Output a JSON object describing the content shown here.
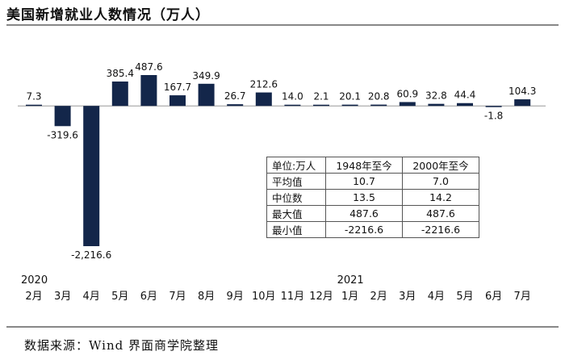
{
  "title": "美国新增就业人数情况（万人）",
  "source": "数据来源：Wind 界面商学院整理",
  "chart_data": {
    "type": "bar",
    "categories": [
      "2月",
      "3月",
      "4月",
      "5月",
      "6月",
      "7月",
      "8月",
      "9月",
      "10月",
      "11月",
      "12月",
      "1月",
      "2月",
      "3月",
      "4月",
      "5月",
      "6月",
      "7月"
    ],
    "values": [
      7.3,
      -319.6,
      -2216.6,
      385.4,
      487.6,
      167.7,
      349.9,
      26.7,
      212.6,
      14.0,
      2.1,
      20.1,
      20.8,
      60.9,
      32.8,
      44.4,
      -1.8,
      104.3
    ],
    "value_labels": [
      "7.3",
      "-319.6",
      "-2,216.6",
      "385.4",
      "487.6",
      "167.7",
      "349.9",
      "26.7",
      "212.6",
      "14.0",
      "2.1",
      "20.1",
      "20.8",
      "60.9",
      "32.8",
      "44.4",
      "-1.8",
      "104.3"
    ],
    "year_labels": [
      {
        "index": 0,
        "text": "2020"
      },
      {
        "index": 11,
        "text": "2021"
      }
    ],
    "bar_color": "#13264a",
    "ylim": [
      -2216.6,
      487.6
    ]
  },
  "stats_table": {
    "header": [
      "单位:万人",
      "1948年至今",
      "2000年至今"
    ],
    "rows": [
      [
        "平均值",
        "10.7",
        "7.0"
      ],
      [
        "中位数",
        "13.5",
        "14.2"
      ],
      [
        "最大值",
        "487.6",
        "487.6"
      ],
      [
        "最小值",
        "-2216.6",
        "-2216.6"
      ]
    ]
  }
}
